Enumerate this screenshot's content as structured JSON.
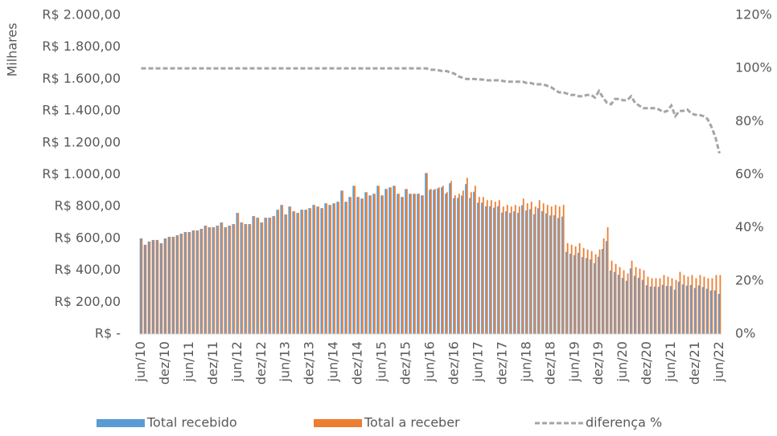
{
  "chart_data": {
    "type": "bar",
    "y_axis_label": "Milhares",
    "categories": [
      "jun/10",
      null,
      null,
      null,
      null,
      null,
      "dez/10",
      null,
      null,
      null,
      null,
      null,
      "jun/11",
      null,
      null,
      null,
      null,
      null,
      "dez/11",
      null,
      null,
      null,
      null,
      null,
      "jun/12",
      null,
      null,
      null,
      null,
      null,
      "dez/12",
      null,
      null,
      null,
      null,
      null,
      "jun/13",
      null,
      null,
      null,
      null,
      null,
      "dez/13",
      null,
      null,
      null,
      null,
      null,
      "jun/14",
      null,
      null,
      null,
      null,
      null,
      "dez/14",
      null,
      null,
      null,
      null,
      null,
      "jun/15",
      null,
      null,
      null,
      null,
      null,
      "dez/15",
      null,
      null,
      null,
      null,
      null,
      "jun/16",
      null,
      null,
      null,
      null,
      null,
      "dez/16",
      null,
      null,
      null,
      null,
      null,
      "jun/17",
      null,
      null,
      null,
      null,
      null,
      "dez/17",
      null,
      null,
      null,
      null,
      null,
      "jun/18",
      null,
      null,
      null,
      null,
      null,
      "dez/18",
      null,
      null,
      null,
      null,
      null,
      "jun/19",
      null,
      null,
      null,
      null,
      null,
      "dez/19",
      null,
      null,
      null,
      null,
      null,
      "jun/20",
      null,
      null,
      null,
      null,
      null,
      "dez/20",
      null,
      null,
      null,
      null,
      null,
      "jun/21",
      null,
      null,
      null,
      null,
      null,
      "dez/21",
      null,
      null,
      null,
      null,
      null,
      "jun/22"
    ],
    "series": [
      {
        "name": "Total recebido",
        "color": "#5b9bd5",
        "type": "bar",
        "values": [
          600,
          560,
          580,
          590,
          590,
          570,
          600,
          610,
          610,
          620,
          630,
          640,
          640,
          650,
          650,
          660,
          680,
          670,
          670,
          680,
          700,
          670,
          680,
          690,
          760,
          700,
          690,
          690,
          740,
          730,
          700,
          730,
          730,
          740,
          780,
          810,
          750,
          800,
          770,
          760,
          780,
          780,
          790,
          810,
          800,
          790,
          820,
          810,
          820,
          830,
          900,
          830,
          860,
          930,
          860,
          850,
          890,
          870,
          880,
          930,
          870,
          910,
          920,
          930,
          880,
          860,
          910,
          880,
          880,
          880,
          870,
          1010,
          905,
          905,
          914,
          921,
          881,
          946,
          853,
          854,
          869,
          941,
          854,
          893,
          824,
          824,
          802,
          802,
          793,
          802,
          762,
          770,
          760,
          770,
          760,
          808,
          775,
          784,
          752,
          790,
          771,
          757,
          744,
          745,
          728,
          737,
          516,
          504,
          495,
          510,
          483,
          477,
          468,
          445,
          485,
          534,
          583,
          398,
          389,
          372,
          352,
          334,
          412,
          365,
          353,
          340,
          306,
          298,
          298,
          296,
          309,
          302,
          301,
          279,
          328,
          311,
          304,
          307,
          289,
          305,
          295,
          284,
          273,
          274,
          252
        ]
      },
      {
        "name": "Total a receber",
        "color": "#ed7d31",
        "type": "bar",
        "values": [
          600,
          560,
          580,
          590,
          590,
          570,
          600,
          610,
          610,
          620,
          630,
          640,
          640,
          650,
          650,
          660,
          680,
          670,
          670,
          680,
          700,
          670,
          680,
          690,
          760,
          700,
          690,
          690,
          740,
          730,
          700,
          730,
          730,
          740,
          780,
          810,
          750,
          800,
          770,
          760,
          780,
          780,
          790,
          810,
          800,
          790,
          820,
          810,
          820,
          830,
          900,
          830,
          860,
          930,
          860,
          850,
          890,
          870,
          880,
          930,
          870,
          910,
          920,
          930,
          880,
          860,
          910,
          880,
          880,
          880,
          870,
          1010,
          910,
          910,
          920,
          930,
          890,
          960,
          870,
          880,
          900,
          980,
          890,
          930,
          860,
          860,
          840,
          840,
          830,
          840,
          800,
          810,
          800,
          810,
          800,
          850,
          820,
          830,
          800,
          840,
          820,
          810,
          800,
          810,
          800,
          810,
          570,
          560,
          550,
          570,
          540,
          530,
          520,
          500,
          530,
          600,
          670,
          460,
          440,
          420,
          400,
          380,
          460,
          420,
          410,
          400,
          360,
          350,
          350,
          350,
          370,
          360,
          350,
          340,
          390,
          370,
          360,
          370,
          350,
          370,
          360,
          350,
          350,
          370,
          370
        ]
      },
      {
        "name": "diferença %",
        "color": "#a5a5a5",
        "type": "line",
        "axis": "y2",
        "values": [
          100,
          100,
          100,
          100,
          100,
          100,
          100,
          100,
          100,
          100,
          100,
          100,
          100,
          100,
          100,
          100,
          100,
          100,
          100,
          100,
          100,
          100,
          100,
          100,
          100,
          100,
          100,
          100,
          100,
          100,
          100,
          100,
          100,
          100,
          100,
          100,
          100,
          100,
          100,
          100,
          100,
          100,
          100,
          100,
          100,
          100,
          100,
          100,
          100,
          100,
          100,
          100,
          100,
          100,
          100,
          100,
          100,
          100,
          100,
          100,
          100,
          100,
          100,
          100,
          100,
          100,
          100,
          100,
          100,
          100,
          100,
          100,
          99.5,
          99.5,
          99.3,
          99,
          99,
          98.5,
          98,
          97,
          96.5,
          96,
          96,
          96,
          95.8,
          95.8,
          95.5,
          95.5,
          95.5,
          95.5,
          95.3,
          95,
          95,
          95,
          95,
          95,
          94.5,
          94.5,
          94,
          94,
          94,
          93.5,
          93,
          92,
          91,
          91,
          90.5,
          90,
          90,
          89.5,
          89.5,
          90,
          90,
          89,
          91.5,
          89,
          87,
          86.5,
          88.5,
          88.5,
          88,
          88,
          89.5,
          87,
          86,
          85,
          85,
          85,
          85,
          84.5,
          83.5,
          84,
          86,
          82,
          84,
          84,
          84.5,
          83,
          82.5,
          82.5,
          82,
          81,
          78,
          74,
          68
        ]
      }
    ],
    "ylim": [
      0,
      2000
    ],
    "yticks": [
      {
        "value": 0,
        "label": "R$ -"
      },
      {
        "value": 200,
        "label": "R$ 200,00"
      },
      {
        "value": 400,
        "label": "R$ 400,00"
      },
      {
        "value": 600,
        "label": "R$ 600,00"
      },
      {
        "value": 800,
        "label": "R$ 800,00"
      },
      {
        "value": 1000,
        "label": "R$ 1.000,00"
      },
      {
        "value": 1200,
        "label": "R$ 1.200,00"
      },
      {
        "value": 1400,
        "label": "R$ 1.400,00"
      },
      {
        "value": 1600,
        "label": "R$ 1.600,00"
      },
      {
        "value": 1800,
        "label": "R$ 1.800,00"
      },
      {
        "value": 2000,
        "label": "R$ 2.000,00"
      }
    ],
    "y2lim": [
      0,
      120
    ],
    "y2ticks": [
      {
        "value": 0,
        "label": "0%"
      },
      {
        "value": 20,
        "label": "20%"
      },
      {
        "value": 40,
        "label": "40%"
      },
      {
        "value": 60,
        "label": "60%"
      },
      {
        "value": 80,
        "label": "80%"
      },
      {
        "value": 100,
        "label": "100%"
      },
      {
        "value": 120,
        "label": "120%"
      }
    ],
    "grid": false,
    "legend": "bottom"
  }
}
